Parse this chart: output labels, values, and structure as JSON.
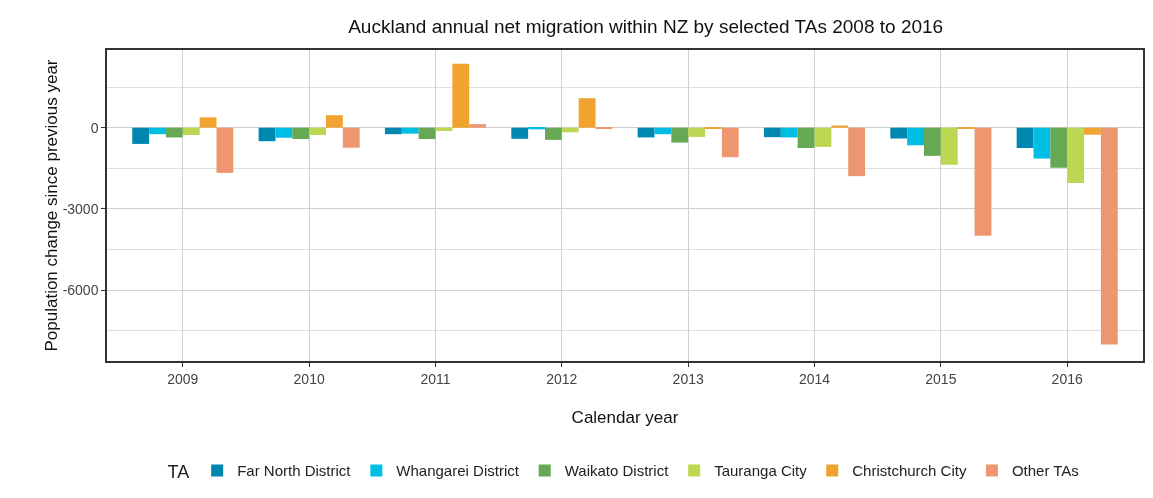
{
  "chart_data": {
    "type": "bar",
    "title": "Auckland annual net migration within NZ by selected TAs 2008 to 2016",
    "xlabel": "Calendar year",
    "ylabel": "Population change since previous year",
    "legend_title": "TA",
    "categories": [
      "2009",
      "2010",
      "2011",
      "2012",
      "2013",
      "2014",
      "2015",
      "2016"
    ],
    "series": [
      {
        "name": "Far North District",
        "color": "#0087b0",
        "values": [
          -600,
          -500,
          -240,
          -410,
          -360,
          -350,
          -400,
          -750
        ]
      },
      {
        "name": "Whangarei District",
        "color": "#00bde3",
        "values": [
          -240,
          -370,
          -220,
          -60,
          -240,
          -360,
          -650,
          -1140
        ]
      },
      {
        "name": "Waikato District",
        "color": "#66a853",
        "values": [
          -360,
          -420,
          -420,
          -450,
          -550,
          -750,
          -1040,
          -1480
        ]
      },
      {
        "name": "Tauranga City",
        "color": "#bcd751",
        "values": [
          -270,
          -270,
          -120,
          -170,
          -340,
          -710,
          -1370,
          -2040
        ]
      },
      {
        "name": "Christchurch City",
        "color": "#f0a32e",
        "values": [
          380,
          460,
          2360,
          1090,
          -30,
          80,
          -30,
          -260
        ]
      },
      {
        "name": "Other TAs",
        "color": "#ee9670",
        "values": [
          -1670,
          -740,
          130,
          -30,
          -1090,
          -1790,
          -3990,
          -8010
        ]
      }
    ],
    "ylim": [
      -8620,
      2870
    ],
    "yticks": [
      -6000,
      -3000,
      0
    ],
    "grid": true,
    "legend": "bottom"
  }
}
